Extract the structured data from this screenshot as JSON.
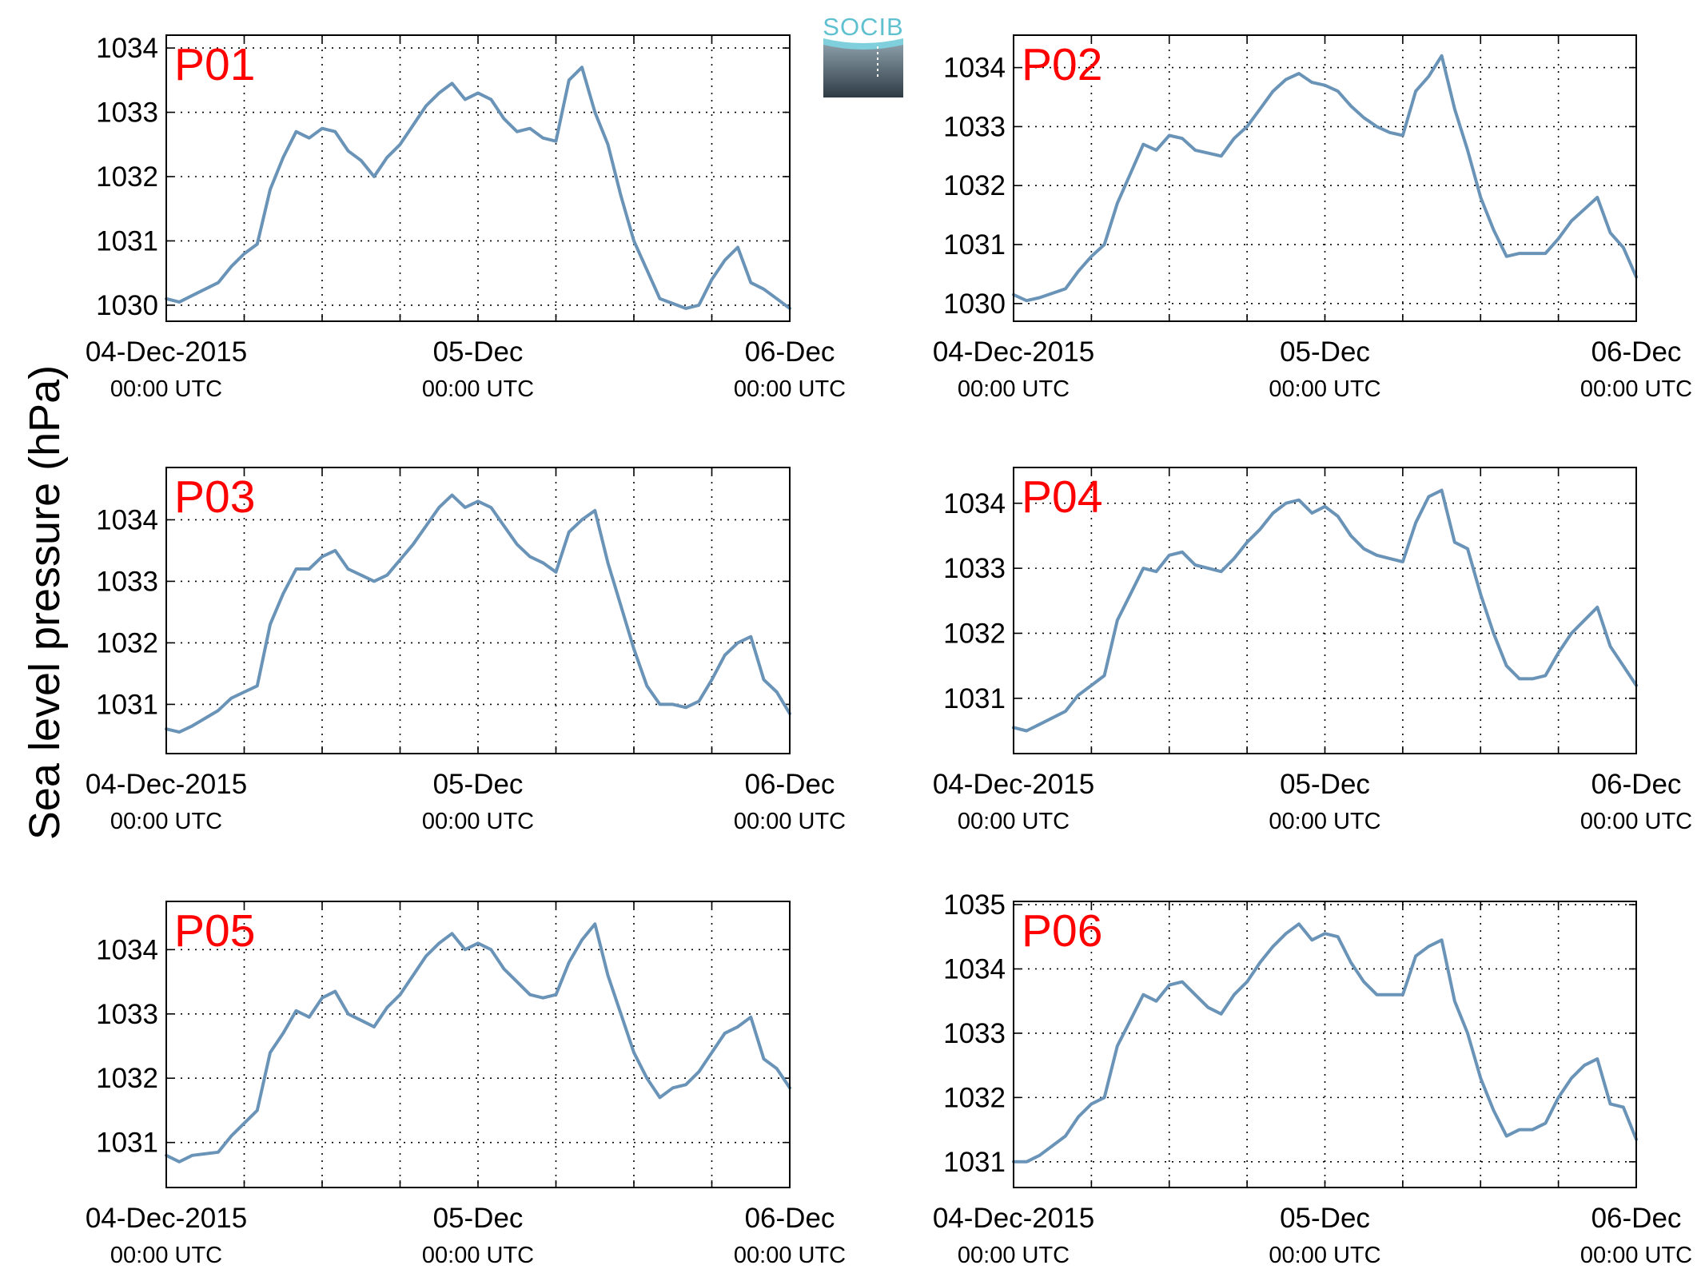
{
  "figure": {
    "ylabel": "Sea level pressure (hPa)",
    "logo_text": "SOCIB",
    "line_color": "#6a93b8",
    "label_color": "#ff0000"
  },
  "chart_data": [
    {
      "type": "line",
      "title": "P01",
      "xlabel": "",
      "ylabel": "Sea level pressure (hPa)",
      "x_tick_labels": [
        {
          "main": "04-Dec-2015",
          "sub": "00:00 UTC"
        },
        {
          "main": "05-Dec",
          "sub": "00:00 UTC"
        },
        {
          "main": "06-Dec",
          "sub": "00:00 UTC"
        }
      ],
      "xlim": [
        "04-Dec-2015 00:00",
        "06-Dec-2015 00:00"
      ],
      "ylim": [
        1029.75,
        1034.2
      ],
      "yticks": [
        1030,
        1031,
        1032,
        1033,
        1034
      ],
      "grid": true,
      "series": [
        {
          "x": [
            "04-Dec 00:00",
            "04-Dec 01:00",
            "04-Dec 02:00",
            "04-Dec 04:00",
            "04-Dec 05:00",
            "04-Dec 06:00",
            "04-Dec 07:00",
            "04-Dec 08:00",
            "04-Dec 09:00",
            "04-Dec 10:00",
            "04-Dec 11:00",
            "04-Dec 12:00",
            "04-Dec 13:00",
            "04-Dec 14:00",
            "04-Dec 15:00",
            "04-Dec 16:00",
            "04-Dec 17:00",
            "04-Dec 18:00",
            "04-Dec 19:00",
            "04-Dec 20:00",
            "04-Dec 21:00",
            "04-Dec 22:00",
            "04-Dec 23:00",
            "05-Dec 00:00",
            "05-Dec 01:00",
            "05-Dec 02:00",
            "05-Dec 03:00",
            "05-Dec 04:00",
            "05-Dec 05:00",
            "05-Dec 06:00",
            "05-Dec 07:00",
            "05-Dec 08:00",
            "05-Dec 09:00",
            "05-Dec 10:00",
            "05-Dec 11:00",
            "05-Dec 12:00",
            "05-Dec 14:00",
            "05-Dec 16:00",
            "05-Dec 17:00",
            "05-Dec 18:00",
            "05-Dec 19:00",
            "05-Dec 20:00",
            "05-Dec 21:00",
            "05-Dec 22:00",
            "05-Dec 23:00",
            "06-Dec 00:00"
          ],
          "y": [
            1030.1,
            1030.05,
            1030.15,
            1030.35,
            1030.6,
            1030.8,
            1030.95,
            1031.8,
            1032.3,
            1032.7,
            1032.6,
            1032.75,
            1032.7,
            1032.4,
            1032.25,
            1032.0,
            1032.3,
            1032.5,
            1032.8,
            1033.1,
            1033.3,
            1033.45,
            1033.2,
            1033.3,
            1033.2,
            1032.9,
            1032.7,
            1032.75,
            1032.6,
            1032.55,
            1033.5,
            1033.7,
            1033.0,
            1032.5,
            1031.7,
            1031.0,
            1030.1,
            1029.95,
            1030.0,
            1030.4,
            1030.7,
            1030.9,
            1030.35,
            1030.25,
            1030.1,
            1029.95
          ]
        }
      ]
    },
    {
      "type": "line",
      "title": "P02",
      "xlabel": "",
      "ylabel": "Sea level pressure (hPa)",
      "x_tick_labels": [
        {
          "main": "04-Dec-2015",
          "sub": "00:00 UTC"
        },
        {
          "main": "05-Dec",
          "sub": "00:00 UTC"
        },
        {
          "main": "06-Dec",
          "sub": "00:00 UTC"
        }
      ],
      "xlim": [
        "04-Dec-2015 00:00",
        "06-Dec-2015 00:00"
      ],
      "ylim": [
        1029.7,
        1034.55
      ],
      "yticks": [
        1030,
        1031,
        1032,
        1033,
        1034
      ],
      "grid": true,
      "series": [
        {
          "x": [
            "04-Dec 00:00",
            "04-Dec 01:00",
            "04-Dec 02:00",
            "04-Dec 04:00",
            "04-Dec 05:00",
            "04-Dec 06:00",
            "04-Dec 07:00",
            "04-Dec 08:00",
            "04-Dec 09:00",
            "04-Dec 10:00",
            "04-Dec 11:00",
            "04-Dec 12:00",
            "04-Dec 13:00",
            "04-Dec 14:00",
            "04-Dec 15:00",
            "04-Dec 16:00",
            "04-Dec 17:00",
            "04-Dec 18:00",
            "04-Dec 19:00",
            "04-Dec 20:00",
            "04-Dec 21:00",
            "04-Dec 22:00",
            "04-Dec 23:00",
            "05-Dec 00:00",
            "05-Dec 01:00",
            "05-Dec 02:00",
            "05-Dec 03:00",
            "05-Dec 04:00",
            "05-Dec 05:00",
            "05-Dec 06:00",
            "05-Dec 07:00",
            "05-Dec 08:00",
            "05-Dec 09:00",
            "05-Dec 10:00",
            "05-Dec 11:00",
            "05-Dec 12:00",
            "05-Dec 13:00",
            "05-Dec 14:00",
            "05-Dec 15:00",
            "05-Dec 16:00",
            "05-Dec 17:00",
            "05-Dec 18:00",
            "05-Dec 19:00",
            "05-Dec 20:00",
            "05-Dec 21:00",
            "05-Dec 22:00",
            "05-Dec 23:00",
            "06-Dec 00:00"
          ],
          "y": [
            1030.15,
            1030.05,
            1030.1,
            1030.25,
            1030.55,
            1030.8,
            1031.0,
            1031.7,
            1032.2,
            1032.7,
            1032.6,
            1032.85,
            1032.8,
            1032.6,
            1032.55,
            1032.5,
            1032.8,
            1033.0,
            1033.3,
            1033.6,
            1033.8,
            1033.9,
            1033.75,
            1033.7,
            1033.6,
            1033.35,
            1033.15,
            1033.0,
            1032.9,
            1032.85,
            1033.6,
            1033.85,
            1034.2,
            1033.3,
            1032.6,
            1031.8,
            1031.25,
            1030.8,
            1030.85,
            1030.85,
            1030.85,
            1031.1,
            1031.4,
            1031.6,
            1031.8,
            1031.2,
            1030.95,
            1030.45
          ]
        }
      ]
    },
    {
      "type": "line",
      "title": "P03",
      "xlabel": "",
      "ylabel": "Sea level pressure (hPa)",
      "x_tick_labels": [
        {
          "main": "04-Dec-2015",
          "sub": "00:00 UTC"
        },
        {
          "main": "05-Dec",
          "sub": "00:00 UTC"
        },
        {
          "main": "06-Dec",
          "sub": "00:00 UTC"
        }
      ],
      "xlim": [
        "04-Dec-2015 00:00",
        "06-Dec-2015 00:00"
      ],
      "ylim": [
        1030.2,
        1034.85
      ],
      "yticks": [
        1031,
        1032,
        1033,
        1034
      ],
      "grid": true,
      "series": [
        {
          "x": [
            "04-Dec 00:00",
            "04-Dec 01:00",
            "04-Dec 02:00",
            "04-Dec 04:00",
            "04-Dec 05:00",
            "04-Dec 06:00",
            "04-Dec 07:00",
            "04-Dec 08:00",
            "04-Dec 09:00",
            "04-Dec 10:00",
            "04-Dec 11:00",
            "04-Dec 12:00",
            "04-Dec 13:00",
            "04-Dec 14:00",
            "04-Dec 15:00",
            "04-Dec 16:00",
            "04-Dec 17:00",
            "04-Dec 18:00",
            "04-Dec 19:00",
            "04-Dec 20:00",
            "04-Dec 21:00",
            "04-Dec 22:00",
            "04-Dec 23:00",
            "05-Dec 00:00",
            "05-Dec 01:00",
            "05-Dec 02:00",
            "05-Dec 03:00",
            "05-Dec 04:00",
            "05-Dec 05:00",
            "05-Dec 06:00",
            "05-Dec 07:00",
            "05-Dec 08:00",
            "05-Dec 09:00",
            "05-Dec 10:00",
            "05-Dec 11:00",
            "05-Dec 12:00",
            "05-Dec 13:00",
            "05-Dec 14:00",
            "05-Dec 15:00",
            "05-Dec 16:00",
            "05-Dec 17:00",
            "05-Dec 18:00",
            "05-Dec 19:00",
            "05-Dec 20:00",
            "05-Dec 21:00",
            "05-Dec 22:00",
            "05-Dec 23:00",
            "06-Dec 00:00"
          ],
          "y": [
            1030.6,
            1030.55,
            1030.65,
            1030.9,
            1031.1,
            1031.2,
            1031.3,
            1032.3,
            1032.8,
            1033.2,
            1033.2,
            1033.4,
            1033.5,
            1033.2,
            1033.1,
            1033.0,
            1033.1,
            1033.35,
            1033.6,
            1033.9,
            1034.2,
            1034.4,
            1034.2,
            1034.3,
            1034.2,
            1033.9,
            1033.6,
            1033.4,
            1033.3,
            1033.15,
            1033.8,
            1034.0,
            1034.15,
            1033.3,
            1032.6,
            1031.9,
            1031.3,
            1031.0,
            1031.0,
            1030.95,
            1031.05,
            1031.4,
            1031.8,
            1032.0,
            1032.1,
            1031.4,
            1031.2,
            1030.85
          ]
        }
      ]
    },
    {
      "type": "line",
      "title": "P04",
      "xlabel": "",
      "ylabel": "Sea level pressure (hPa)",
      "x_tick_labels": [
        {
          "main": "04-Dec-2015",
          "sub": "00:00 UTC"
        },
        {
          "main": "05-Dec",
          "sub": "00:00 UTC"
        },
        {
          "main": "06-Dec",
          "sub": "00:00 UTC"
        }
      ],
      "xlim": [
        "04-Dec-2015 00:00",
        "06-Dec-2015 00:00"
      ],
      "ylim": [
        1030.15,
        1034.55
      ],
      "yticks": [
        1031,
        1032,
        1033,
        1034
      ],
      "grid": true,
      "series": [
        {
          "x": [
            "04-Dec 00:00",
            "04-Dec 01:00",
            "04-Dec 02:00",
            "04-Dec 04:00",
            "04-Dec 05:00",
            "04-Dec 06:00",
            "04-Dec 07:00",
            "04-Dec 08:00",
            "04-Dec 09:00",
            "04-Dec 10:00",
            "04-Dec 11:00",
            "04-Dec 12:00",
            "04-Dec 13:00",
            "04-Dec 14:00",
            "04-Dec 15:00",
            "04-Dec 16:00",
            "04-Dec 17:00",
            "04-Dec 18:00",
            "04-Dec 19:00",
            "04-Dec 20:00",
            "04-Dec 21:00",
            "04-Dec 22:00",
            "04-Dec 23:00",
            "05-Dec 00:00",
            "05-Dec 01:00",
            "05-Dec 02:00",
            "05-Dec 03:00",
            "05-Dec 04:00",
            "05-Dec 05:00",
            "05-Dec 06:00",
            "05-Dec 07:00",
            "05-Dec 08:00",
            "05-Dec 09:00",
            "05-Dec 10:00",
            "05-Dec 11:00",
            "05-Dec 12:00",
            "05-Dec 13:00",
            "05-Dec 14:00",
            "05-Dec 15:00",
            "05-Dec 16:00",
            "05-Dec 17:00",
            "05-Dec 18:00",
            "05-Dec 19:00",
            "05-Dec 20:00",
            "05-Dec 21:00",
            "05-Dec 22:00",
            "05-Dec 23:00",
            "06-Dec 00:00"
          ],
          "y": [
            1030.55,
            1030.5,
            1030.6,
            1030.8,
            1031.05,
            1031.2,
            1031.35,
            1032.2,
            1032.6,
            1033.0,
            1032.95,
            1033.2,
            1033.25,
            1033.05,
            1033.0,
            1032.95,
            1033.15,
            1033.4,
            1033.6,
            1033.85,
            1034.0,
            1034.05,
            1033.85,
            1033.95,
            1033.8,
            1033.5,
            1033.3,
            1033.2,
            1033.15,
            1033.1,
            1033.7,
            1034.1,
            1034.2,
            1033.4,
            1033.3,
            1032.6,
            1032.0,
            1031.5,
            1031.3,
            1031.3,
            1031.35,
            1031.7,
            1032.0,
            1032.2,
            1032.4,
            1031.8,
            1031.5,
            1031.2
          ]
        }
      ]
    },
    {
      "type": "line",
      "title": "P05",
      "xlabel": "",
      "ylabel": "Sea level pressure (hPa)",
      "x_tick_labels": [
        {
          "main": "04-Dec-2015",
          "sub": "00:00 UTC"
        },
        {
          "main": "05-Dec",
          "sub": "00:00 UTC"
        },
        {
          "main": "06-Dec",
          "sub": "00:00 UTC"
        }
      ],
      "xlim": [
        "04-Dec-2015 00:00",
        "06-Dec-2015 00:00"
      ],
      "ylim": [
        1030.3,
        1034.75
      ],
      "yticks": [
        1031,
        1032,
        1033,
        1034
      ],
      "grid": true,
      "series": [
        {
          "x": [
            "04-Dec 00:00",
            "04-Dec 01:00",
            "04-Dec 02:00",
            "04-Dec 04:00",
            "04-Dec 05:00",
            "04-Dec 06:00",
            "04-Dec 07:00",
            "04-Dec 08:00",
            "04-Dec 09:00",
            "04-Dec 10:00",
            "04-Dec 11:00",
            "04-Dec 12:00",
            "04-Dec 13:00",
            "04-Dec 14:00",
            "04-Dec 15:00",
            "04-Dec 16:00",
            "04-Dec 17:00",
            "04-Dec 18:00",
            "04-Dec 19:00",
            "04-Dec 20:00",
            "04-Dec 21:00",
            "04-Dec 22:00",
            "04-Dec 23:00",
            "05-Dec 00:00",
            "05-Dec 01:00",
            "05-Dec 02:00",
            "05-Dec 03:00",
            "05-Dec 04:00",
            "05-Dec 05:00",
            "05-Dec 06:00",
            "05-Dec 07:00",
            "05-Dec 08:00",
            "05-Dec 09:00",
            "05-Dec 10:00",
            "05-Dec 11:00",
            "05-Dec 12:00",
            "05-Dec 13:00",
            "05-Dec 14:00",
            "05-Dec 15:00",
            "05-Dec 16:00",
            "05-Dec 17:00",
            "05-Dec 18:00",
            "05-Dec 19:00",
            "05-Dec 20:00",
            "05-Dec 21:00",
            "05-Dec 22:00",
            "05-Dec 23:00",
            "06-Dec 00:00"
          ],
          "y": [
            1030.8,
            1030.7,
            1030.8,
            1030.85,
            1031.1,
            1031.3,
            1031.5,
            1032.4,
            1032.7,
            1033.05,
            1032.95,
            1033.25,
            1033.35,
            1033.0,
            1032.9,
            1032.8,
            1033.1,
            1033.3,
            1033.6,
            1033.9,
            1034.1,
            1034.25,
            1034.0,
            1034.1,
            1034.0,
            1033.7,
            1033.5,
            1033.3,
            1033.25,
            1033.3,
            1033.8,
            1034.15,
            1034.4,
            1033.6,
            1033.0,
            1032.4,
            1032.0,
            1031.7,
            1031.85,
            1031.9,
            1032.1,
            1032.4,
            1032.7,
            1032.8,
            1032.95,
            1032.3,
            1032.15,
            1031.85
          ]
        }
      ]
    },
    {
      "type": "line",
      "title": "P06",
      "xlabel": "",
      "ylabel": "Sea level pressure (hPa)",
      "x_tick_labels": [
        {
          "main": "04-Dec-2015",
          "sub": "00:00 UTC"
        },
        {
          "main": "05-Dec",
          "sub": "00:00 UTC"
        },
        {
          "main": "06-Dec",
          "sub": "00:00 UTC"
        }
      ],
      "xlim": [
        "04-Dec-2015 00:00",
        "06-Dec-2015 00:00"
      ],
      "ylim": [
        1030.6,
        1035.05
      ],
      "yticks": [
        1031,
        1032,
        1033,
        1034,
        1035
      ],
      "grid": true,
      "series": [
        {
          "x": [
            "04-Dec 00:00",
            "04-Dec 01:00",
            "04-Dec 02:00",
            "04-Dec 04:00",
            "04-Dec 05:00",
            "04-Dec 06:00",
            "04-Dec 07:00",
            "04-Dec 08:00",
            "04-Dec 09:00",
            "04-Dec 10:00",
            "04-Dec 11:00",
            "04-Dec 12:00",
            "04-Dec 13:00",
            "04-Dec 14:00",
            "04-Dec 15:00",
            "04-Dec 16:00",
            "04-Dec 17:00",
            "04-Dec 18:00",
            "04-Dec 19:00",
            "04-Dec 20:00",
            "04-Dec 21:00",
            "04-Dec 22:00",
            "04-Dec 23:00",
            "05-Dec 00:00",
            "05-Dec 01:00",
            "05-Dec 02:00",
            "05-Dec 03:00",
            "05-Dec 04:00",
            "05-Dec 05:00",
            "05-Dec 06:00",
            "05-Dec 07:00",
            "05-Dec 08:00",
            "05-Dec 09:00",
            "05-Dec 10:00",
            "05-Dec 11:00",
            "05-Dec 12:00",
            "05-Dec 13:00",
            "05-Dec 14:00",
            "05-Dec 15:00",
            "05-Dec 16:00",
            "05-Dec 17:00",
            "05-Dec 18:00",
            "05-Dec 19:00",
            "05-Dec 20:00",
            "05-Dec 21:00",
            "05-Dec 22:00",
            "05-Dec 23:00",
            "06-Dec 00:00"
          ],
          "y": [
            1031.0,
            1031.0,
            1031.1,
            1031.4,
            1031.7,
            1031.9,
            1032.0,
            1032.8,
            1033.2,
            1033.6,
            1033.5,
            1033.75,
            1033.8,
            1033.6,
            1033.4,
            1033.3,
            1033.6,
            1033.8,
            1034.1,
            1034.35,
            1034.55,
            1034.7,
            1034.45,
            1034.55,
            1034.5,
            1034.1,
            1033.8,
            1033.6,
            1033.6,
            1033.6,
            1034.2,
            1034.35,
            1034.45,
            1033.5,
            1033.0,
            1032.3,
            1031.8,
            1031.4,
            1031.5,
            1031.5,
            1031.6,
            1032.0,
            1032.3,
            1032.5,
            1032.6,
            1031.9,
            1031.85,
            1031.35
          ]
        }
      ]
    }
  ]
}
